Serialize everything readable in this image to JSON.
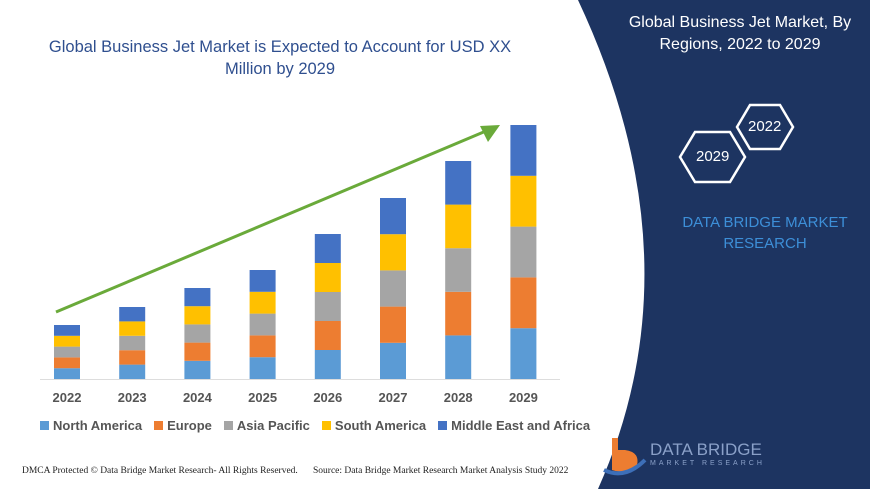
{
  "title": "Global Business Jet Market is Expected to Account for USD XX Million by 2029",
  "side_panel": {
    "title": "Global Business Jet Market, By Regions, 2022 to 2029",
    "hex_labels": [
      "2022",
      "2029"
    ],
    "brand": "DATA BRIDGE MARKET RESEARCH",
    "logo_line1": "DATA BRIDGE",
    "logo_line2": "MARKET RESEARCH",
    "background": "#1d3461"
  },
  "chart_data": {
    "type": "bar",
    "stacked": true,
    "title": "Global Business Jet Market is Expected to Account for USD XX Million by 2029",
    "xlabel": "",
    "ylabel": "",
    "y_axis_shown": false,
    "grid": false,
    "legend_position": "bottom",
    "trend_arrow": true,
    "trend_arrow_color": "#6aaa3a",
    "categories": [
      "2022",
      "2023",
      "2024",
      "2025",
      "2026",
      "2027",
      "2028",
      "2029"
    ],
    "series": [
      {
        "name": "North America",
        "color": "#5b9bd5",
        "values": [
          10.8,
          14.4,
          18.2,
          21.8,
          29,
          36.2,
          43.6,
          50.8
        ]
      },
      {
        "name": "Europe",
        "color": "#ed7d31",
        "values": [
          10.8,
          14.4,
          18.2,
          21.8,
          29,
          36.2,
          43.6,
          50.8
        ]
      },
      {
        "name": "Asia Pacific",
        "color": "#a5a5a5",
        "values": [
          10.8,
          14.4,
          18.2,
          21.8,
          29,
          36.2,
          43.6,
          50.8
        ]
      },
      {
        "name": "South America",
        "color": "#ffc000",
        "values": [
          10.8,
          14.4,
          18.2,
          21.8,
          29,
          36.2,
          43.6,
          50.8
        ]
      },
      {
        "name": "Middle East and Africa",
        "color": "#4472c4",
        "values": [
          10.8,
          14.4,
          18.2,
          21.8,
          29,
          36.2,
          43.6,
          50.8
        ]
      }
    ]
  },
  "footer": {
    "left": "DMCA Protected © Data Bridge Market Research- All Rights Reserved.",
    "right": "Source: Data Bridge Market Research Market Analysis Study 2022"
  }
}
